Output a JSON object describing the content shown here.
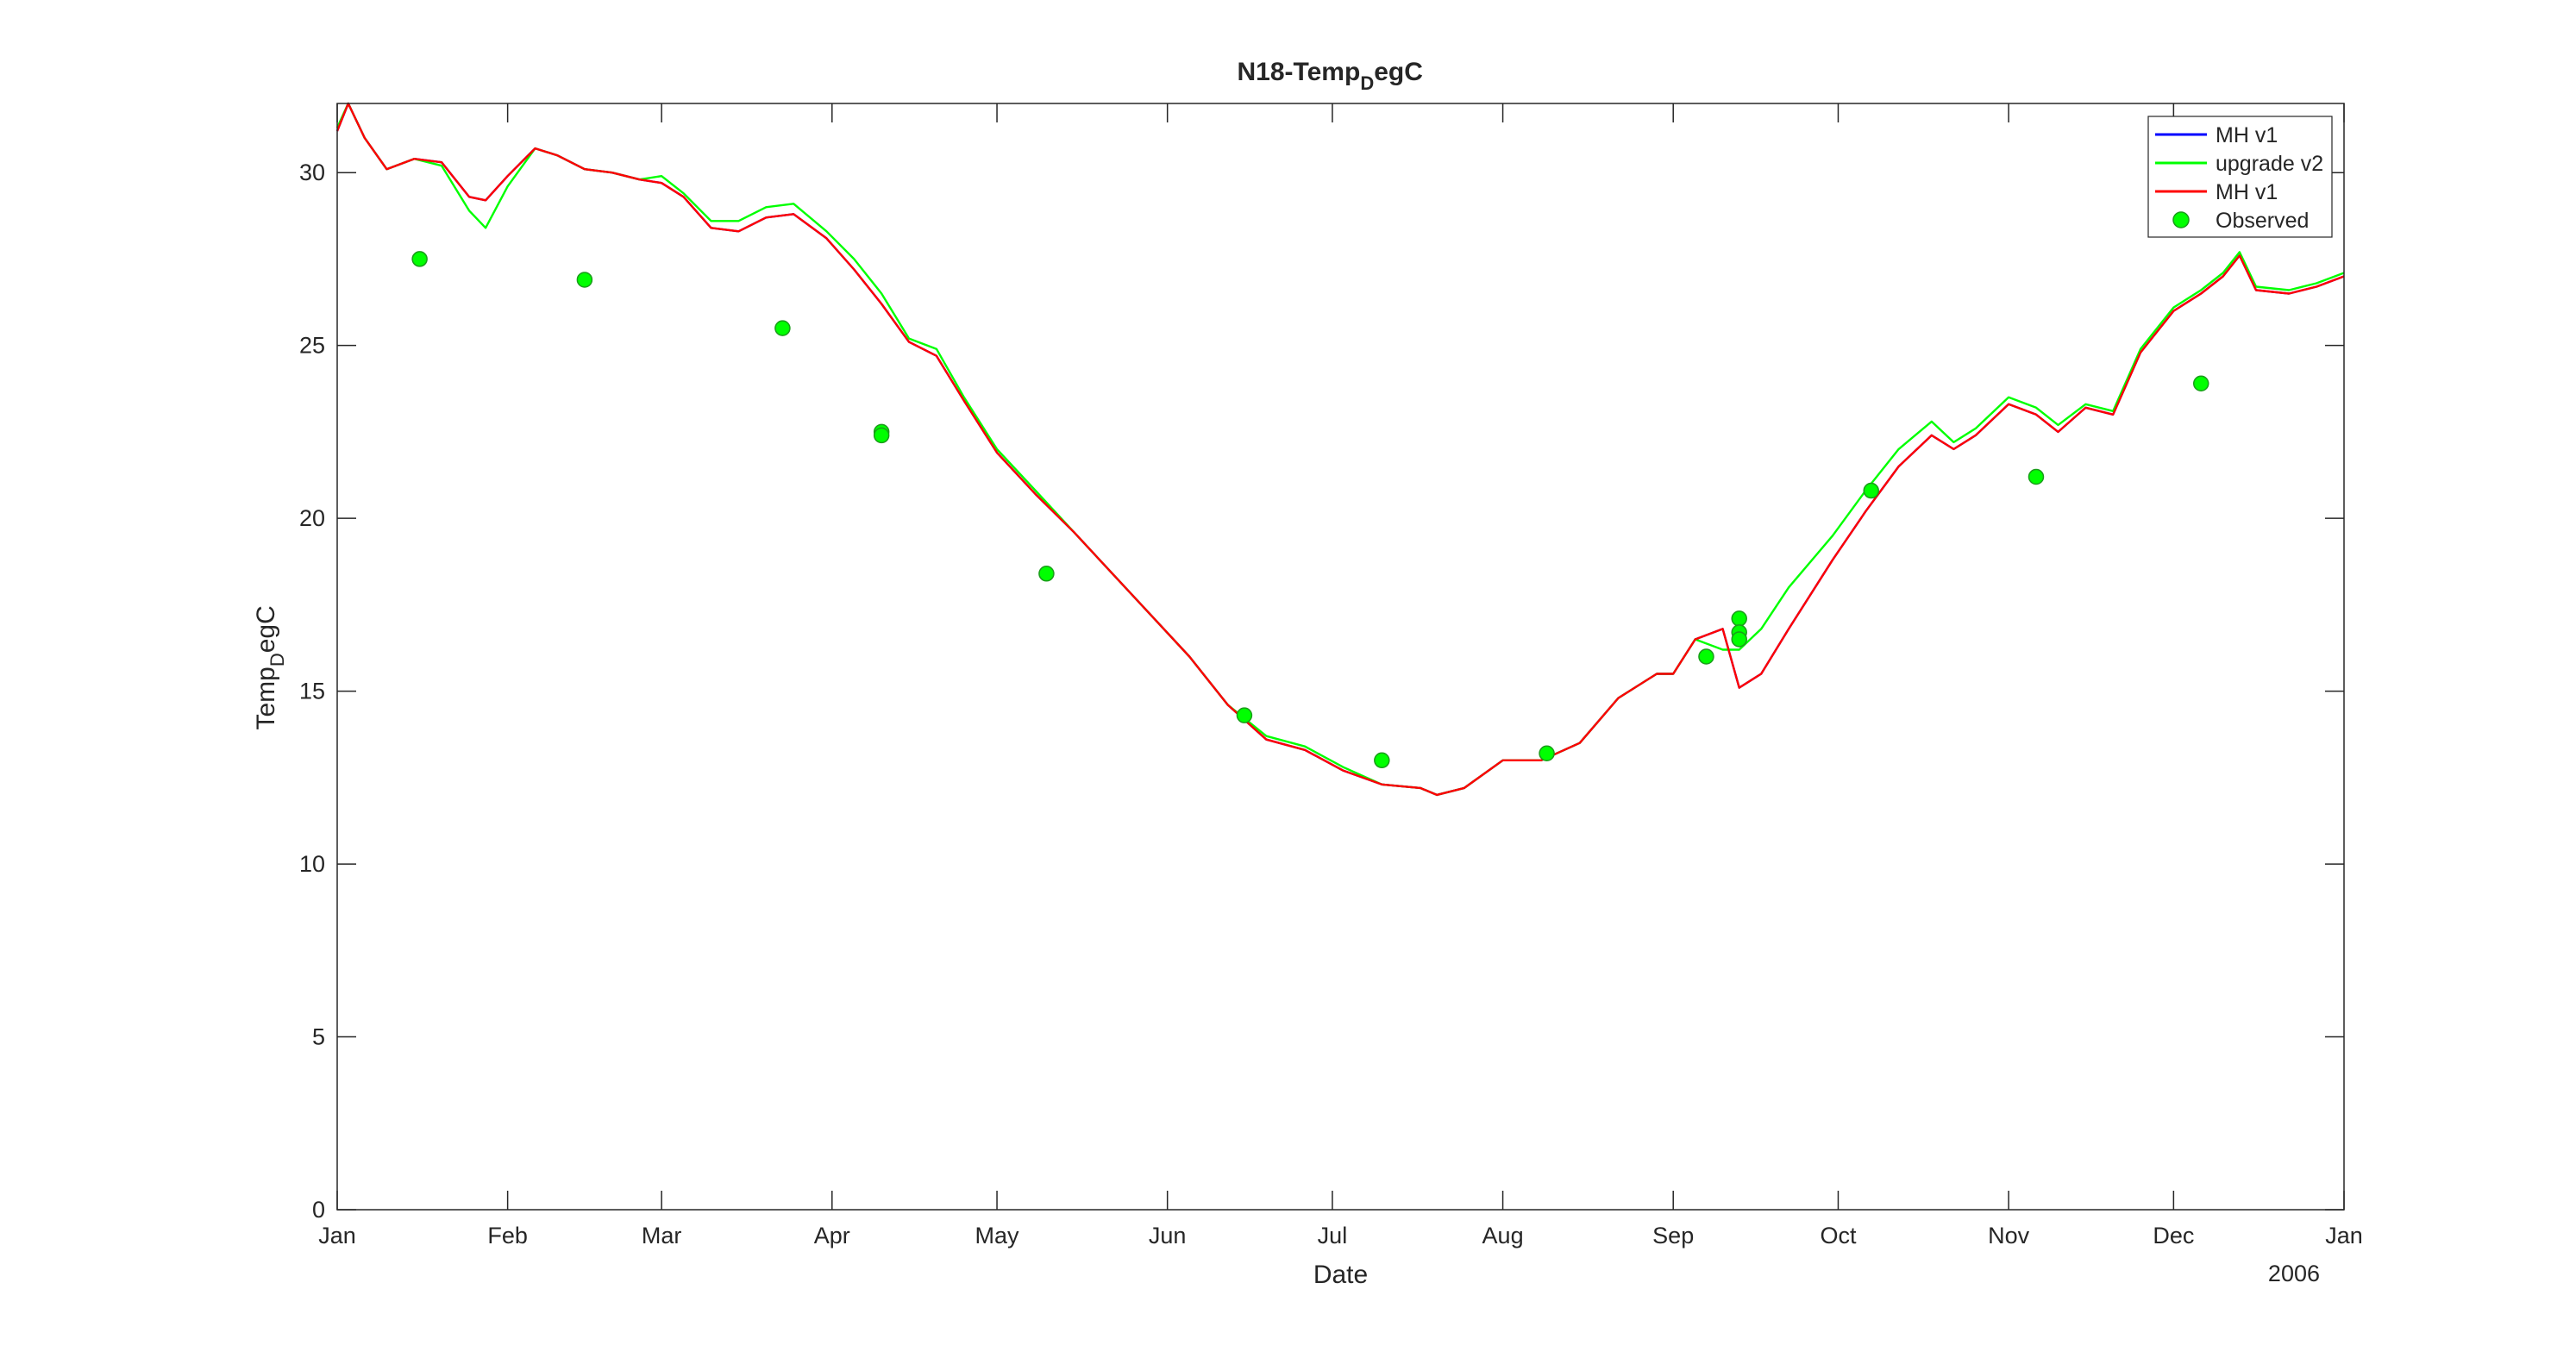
{
  "chart_data": {
    "type": "line",
    "title": "N18-Temp_DegC",
    "title_parts": {
      "main": "N18-Temp",
      "sub": "D",
      "rest": "egC"
    },
    "xlabel": "Date",
    "ylabel": "Temp_DegC",
    "ylabel_parts": {
      "main": "Temp",
      "sub": "D",
      "rest": "egC"
    },
    "year_label": "2006",
    "xlim": [
      "2006-01-01",
      "2007-01-01"
    ],
    "ylim": [
      0,
      32
    ],
    "x_ticks": [
      {
        "date": "2006-01-01",
        "label": "Jan"
      },
      {
        "date": "2006-02-01",
        "label": "Feb"
      },
      {
        "date": "2006-03-01",
        "label": "Mar"
      },
      {
        "date": "2006-04-01",
        "label": "Apr"
      },
      {
        "date": "2006-05-01",
        "label": "May"
      },
      {
        "date": "2006-06-01",
        "label": "Jun"
      },
      {
        "date": "2006-07-01",
        "label": "Jul"
      },
      {
        "date": "2006-08-01",
        "label": "Aug"
      },
      {
        "date": "2006-09-01",
        "label": "Sep"
      },
      {
        "date": "2006-10-01",
        "label": "Oct"
      },
      {
        "date": "2006-11-01",
        "label": "Nov"
      },
      {
        "date": "2006-12-01",
        "label": "Dec"
      },
      {
        "date": "2007-01-01",
        "label": "Jan"
      }
    ],
    "y_ticks": [
      0,
      5,
      10,
      15,
      20,
      25,
      30
    ],
    "grid": false,
    "legend_position": "top-right",
    "series": [
      {
        "name": "MH v1",
        "type": "line",
        "color": "#0000ff",
        "x": [
          "2006-01-01",
          "2006-01-03",
          "2006-01-06",
          "2006-01-10",
          "2006-01-15",
          "2006-01-20",
          "2006-01-25",
          "2006-01-28",
          "2006-02-01",
          "2006-02-06",
          "2006-02-10",
          "2006-02-15",
          "2006-02-20",
          "2006-02-25",
          "2006-03-01",
          "2006-03-05",
          "2006-03-10",
          "2006-03-15",
          "2006-03-20",
          "2006-03-25",
          "2006-03-31",
          "2006-04-05",
          "2006-04-10",
          "2006-04-15",
          "2006-04-20",
          "2006-04-25",
          "2006-05-01",
          "2006-05-08",
          "2006-05-15",
          "2006-05-22",
          "2006-05-29",
          "2006-06-05",
          "2006-06-12",
          "2006-06-19",
          "2006-06-26",
          "2006-07-03",
          "2006-07-10",
          "2006-07-17",
          "2006-07-20",
          "2006-07-25",
          "2006-08-01",
          "2006-08-08",
          "2006-08-15",
          "2006-08-22",
          "2006-08-29",
          "2006-09-01",
          "2006-09-05",
          "2006-09-10",
          "2006-09-13",
          "2006-09-17",
          "2006-09-22",
          "2006-09-30",
          "2006-10-06",
          "2006-10-12",
          "2006-10-18",
          "2006-10-22",
          "2006-10-26",
          "2006-11-01",
          "2006-11-06",
          "2006-11-10",
          "2006-11-15",
          "2006-11-20",
          "2006-11-25",
          "2006-12-01",
          "2006-12-06",
          "2006-12-10",
          "2006-12-13",
          "2006-12-16",
          "2006-12-22",
          "2006-12-27",
          "2007-01-01"
        ],
        "y": [
          31.2,
          32.0,
          31.0,
          30.1,
          30.4,
          30.3,
          29.3,
          29.2,
          29.9,
          30.7,
          30.5,
          30.1,
          30.0,
          29.8,
          29.7,
          29.3,
          28.4,
          28.3,
          28.7,
          28.8,
          28.1,
          27.2,
          26.2,
          25.1,
          24.7,
          23.4,
          21.9,
          20.7,
          19.6,
          18.4,
          17.2,
          16.0,
          14.6,
          13.6,
          13.3,
          12.7,
          12.3,
          12.2,
          12.0,
          12.2,
          13.0,
          13.0,
          13.5,
          14.8,
          15.5,
          15.5,
          16.5,
          16.8,
          15.1,
          15.5,
          16.8,
          18.8,
          20.2,
          21.5,
          22.4,
          22.0,
          22.4,
          23.3,
          23.0,
          22.5,
          23.2,
          23.0,
          24.8,
          26.0,
          26.5,
          27.0,
          27.6,
          26.6,
          26.5,
          26.7,
          27.0
        ]
      },
      {
        "name": "upgrade v2",
        "type": "line",
        "color": "#00ff00",
        "x": [
          "2006-01-01",
          "2006-01-03",
          "2006-01-06",
          "2006-01-10",
          "2006-01-15",
          "2006-01-20",
          "2006-01-25",
          "2006-01-28",
          "2006-02-01",
          "2006-02-06",
          "2006-02-10",
          "2006-02-15",
          "2006-02-20",
          "2006-02-25",
          "2006-03-01",
          "2006-03-05",
          "2006-03-10",
          "2006-03-15",
          "2006-03-20",
          "2006-03-25",
          "2006-03-31",
          "2006-04-05",
          "2006-04-10",
          "2006-04-15",
          "2006-04-20",
          "2006-04-25",
          "2006-05-01",
          "2006-05-08",
          "2006-05-15",
          "2006-05-22",
          "2006-05-29",
          "2006-06-05",
          "2006-06-12",
          "2006-06-19",
          "2006-06-26",
          "2006-07-03",
          "2006-07-10",
          "2006-07-17",
          "2006-07-20",
          "2006-07-25",
          "2006-08-01",
          "2006-08-08",
          "2006-08-15",
          "2006-08-22",
          "2006-08-29",
          "2006-09-01",
          "2006-09-05",
          "2006-09-10",
          "2006-09-13",
          "2006-09-17",
          "2006-09-22",
          "2006-09-30",
          "2006-10-06",
          "2006-10-12",
          "2006-10-18",
          "2006-10-22",
          "2006-10-26",
          "2006-11-01",
          "2006-11-06",
          "2006-11-10",
          "2006-11-15",
          "2006-11-20",
          "2006-11-25",
          "2006-12-01",
          "2006-12-06",
          "2006-12-10",
          "2006-12-13",
          "2006-12-16",
          "2006-12-22",
          "2006-12-27",
          "2007-01-01"
        ],
        "y": [
          31.3,
          32.0,
          31.0,
          30.1,
          30.4,
          30.2,
          28.9,
          28.4,
          29.6,
          30.7,
          30.5,
          30.1,
          30.0,
          29.8,
          29.9,
          29.4,
          28.6,
          28.6,
          29.0,
          29.1,
          28.3,
          27.5,
          26.5,
          25.2,
          24.9,
          23.5,
          22.0,
          20.8,
          19.6,
          18.4,
          17.2,
          16.0,
          14.6,
          13.7,
          13.4,
          12.8,
          12.3,
          12.2,
          12.0,
          12.2,
          13.0,
          13.0,
          13.5,
          14.8,
          15.5,
          15.5,
          16.5,
          16.2,
          16.2,
          16.8,
          18.0,
          19.5,
          20.8,
          22.0,
          22.8,
          22.2,
          22.6,
          23.5,
          23.2,
          22.7,
          23.3,
          23.1,
          24.9,
          26.1,
          26.6,
          27.1,
          27.7,
          26.7,
          26.6,
          26.8,
          27.1
        ]
      },
      {
        "name": "MH v1",
        "type": "line",
        "color": "#ff0000",
        "x": [
          "2006-01-01",
          "2006-01-03",
          "2006-01-06",
          "2006-01-10",
          "2006-01-15",
          "2006-01-20",
          "2006-01-25",
          "2006-01-28",
          "2006-02-01",
          "2006-02-06",
          "2006-02-10",
          "2006-02-15",
          "2006-02-20",
          "2006-02-25",
          "2006-03-01",
          "2006-03-05",
          "2006-03-10",
          "2006-03-15",
          "2006-03-20",
          "2006-03-25",
          "2006-03-31",
          "2006-04-05",
          "2006-04-10",
          "2006-04-15",
          "2006-04-20",
          "2006-04-25",
          "2006-05-01",
          "2006-05-08",
          "2006-05-15",
          "2006-05-22",
          "2006-05-29",
          "2006-06-05",
          "2006-06-12",
          "2006-06-19",
          "2006-06-26",
          "2006-07-03",
          "2006-07-10",
          "2006-07-17",
          "2006-07-20",
          "2006-07-25",
          "2006-08-01",
          "2006-08-08",
          "2006-08-15",
          "2006-08-22",
          "2006-08-29",
          "2006-09-01",
          "2006-09-05",
          "2006-09-10",
          "2006-09-13",
          "2006-09-17",
          "2006-09-22",
          "2006-09-30",
          "2006-10-06",
          "2006-10-12",
          "2006-10-18",
          "2006-10-22",
          "2006-10-26",
          "2006-11-01",
          "2006-11-06",
          "2006-11-10",
          "2006-11-15",
          "2006-11-20",
          "2006-11-25",
          "2006-12-01",
          "2006-12-06",
          "2006-12-10",
          "2006-12-13",
          "2006-12-16",
          "2006-12-22",
          "2006-12-27",
          "2007-01-01"
        ],
        "y": [
          31.2,
          32.0,
          31.0,
          30.1,
          30.4,
          30.3,
          29.3,
          29.2,
          29.9,
          30.7,
          30.5,
          30.1,
          30.0,
          29.8,
          29.7,
          29.3,
          28.4,
          28.3,
          28.7,
          28.8,
          28.1,
          27.2,
          26.2,
          25.1,
          24.7,
          23.4,
          21.9,
          20.7,
          19.6,
          18.4,
          17.2,
          16.0,
          14.6,
          13.6,
          13.3,
          12.7,
          12.3,
          12.2,
          12.0,
          12.2,
          13.0,
          13.0,
          13.5,
          14.8,
          15.5,
          15.5,
          16.5,
          16.8,
          15.1,
          15.5,
          16.8,
          18.8,
          20.2,
          21.5,
          22.4,
          22.0,
          22.4,
          23.3,
          23.0,
          22.5,
          23.2,
          23.0,
          24.8,
          26.0,
          26.5,
          27.0,
          27.6,
          26.6,
          26.5,
          26.7,
          27.0
        ]
      },
      {
        "name": "Observed",
        "type": "scatter",
        "color": "#00ff00",
        "x": [
          "2006-01-16",
          "2006-02-15",
          "2006-03-23",
          "2006-04-10",
          "2006-04-10",
          "2006-05-10",
          "2006-06-15",
          "2006-07-10",
          "2006-08-09",
          "2006-09-07",
          "2006-09-13",
          "2006-09-13",
          "2006-09-13",
          "2006-10-07",
          "2006-11-06",
          "2006-12-06"
        ],
        "y": [
          27.5,
          26.9,
          25.5,
          22.5,
          22.4,
          18.4,
          14.3,
          13.0,
          13.2,
          16.0,
          17.1,
          16.7,
          16.5,
          20.8,
          21.2,
          23.9
        ]
      }
    ]
  }
}
